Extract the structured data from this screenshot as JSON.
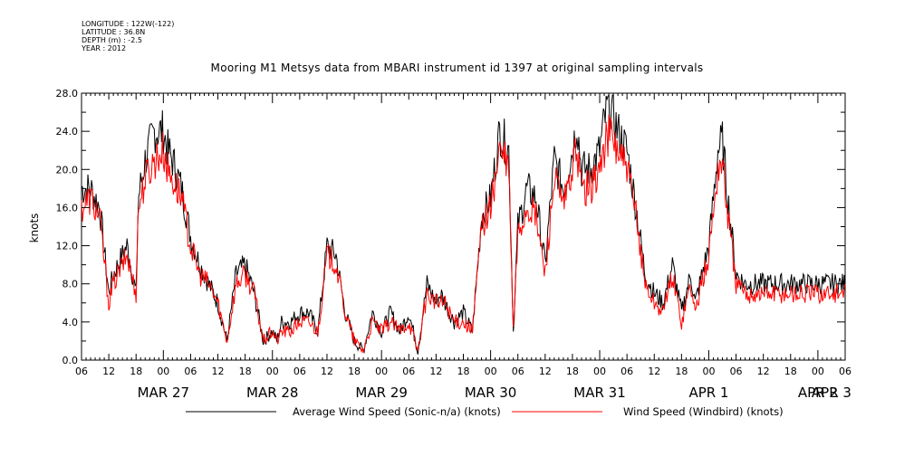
{
  "metadata_lines": [
    "LONGITUDE : 122W(-122)",
    "LATITUDE : 36.8N",
    "DEPTH (m) : -2.5",
    "YEAR : 2012"
  ],
  "chart_data": {
    "type": "line",
    "title": "Mooring M1 Metsys data from MBARI instrument id 1397 at original sampling intervals",
    "ylabel": "knots",
    "xlabel": "",
    "ylim": [
      0,
      28
    ],
    "xlim_hours": [
      0,
      168
    ],
    "y_ticks": [
      "0.0",
      "4.0",
      "8.0",
      "12.0",
      "16.0",
      "20.0",
      "24.0",
      "28.0"
    ],
    "hour_ticks": [
      "06",
      "12",
      "18",
      "00",
      "06",
      "12",
      "18",
      "00",
      "06",
      "12",
      "18",
      "00",
      "06",
      "12",
      "18",
      "00",
      "06",
      "12",
      "18",
      "00",
      "06",
      "12",
      "18",
      "00",
      "06",
      "12",
      "18",
      "00",
      "06"
    ],
    "day_labels": [
      "MAR 27",
      "MAR 28",
      "MAR 29",
      "MAR 30",
      "MAR 31",
      "APR  1",
      "APR  2",
      "APR  3"
    ],
    "grid": false,
    "legend_position": "bottom",
    "series": [
      {
        "name": "Average Wind Speed (Sonic-n/a) (knots)",
        "color": "#000000",
        "x": [
          0,
          2,
          4,
          6,
          7,
          8,
          10,
          12,
          12.5,
          14,
          16,
          18,
          19,
          20,
          22,
          24,
          26,
          28,
          30,
          32,
          34,
          36,
          38,
          40,
          42,
          43,
          44,
          46,
          48,
          50,
          52,
          54,
          56,
          58,
          60,
          62,
          64,
          66,
          68,
          70,
          72,
          74,
          76,
          78,
          79,
          80,
          82,
          84,
          86,
          88,
          90,
          92,
          94,
          95,
          96,
          98,
          100,
          102,
          104,
          106,
          108,
          109,
          110,
          112,
          114,
          115,
          116,
          118,
          120,
          122,
          124,
          126,
          128,
          130,
          132,
          134,
          135,
          136,
          138,
          140,
          141,
          142,
          144,
          146,
          148,
          150,
          152,
          154,
          156,
          158,
          160,
          162,
          164,
          166,
          167,
          168
        ],
        "values": [
          18,
          18,
          16,
          7,
          9,
          10,
          12,
          7,
          17,
          21,
          24,
          24,
          22,
          21,
          18,
          13,
          10,
          8,
          6,
          2,
          9,
          10,
          7,
          2,
          3,
          2,
          4,
          4,
          5,
          5,
          3,
          12,
          11,
          5,
          2,
          1,
          5,
          3,
          5,
          3,
          5,
          1,
          8,
          6,
          7,
          6,
          4,
          5,
          3,
          15,
          17,
          24,
          22,
          3,
          14,
          18,
          17,
          10,
          21,
          18,
          22,
          25,
          20,
          20,
          22,
          25,
          27,
          24,
          22,
          16,
          9,
          7,
          6,
          10,
          5,
          9,
          6,
          8,
          12,
          22,
          23,
          18,
          9,
          8,
          8,
          8,
          8,
          8,
          8,
          8,
          8,
          8,
          8,
          8,
          8,
          8
        ],
        "values_valid_to_hour": 140
      },
      {
        "name": "Wind Speed (Windbird) (knots)",
        "color": "#ff0000",
        "x": [
          0,
          2,
          4,
          6,
          7,
          8,
          10,
          12,
          12.5,
          14,
          16,
          18,
          19,
          20,
          22,
          24,
          26,
          28,
          30,
          32,
          34,
          36,
          38,
          40,
          42,
          43,
          44,
          46,
          48,
          50,
          52,
          54,
          56,
          58,
          60,
          62,
          64,
          66,
          68,
          70,
          72,
          74,
          76,
          78,
          79,
          80,
          82,
          84,
          86,
          88,
          90,
          92,
          94,
          95,
          96,
          98,
          100,
          102,
          104,
          106,
          108,
          109,
          110,
          112,
          114,
          115,
          116,
          118,
          120,
          122,
          124,
          126,
          128,
          130,
          132,
          134,
          135,
          136,
          138,
          140,
          141,
          142,
          144,
          146,
          148,
          150,
          152,
          154,
          156,
          158,
          160,
          162,
          164,
          166,
          167,
          168
        ],
        "values": [
          16,
          17,
          15,
          6,
          8,
          9,
          11,
          7,
          16,
          19,
          21,
          22,
          20,
          19,
          17,
          12,
          9,
          8,
          6,
          2,
          8,
          9,
          7,
          2,
          3,
          2,
          3,
          3,
          4,
          4,
          3,
          11,
          10,
          5,
          2,
          1,
          4,
          3,
          4,
          3,
          4,
          1,
          7,
          6,
          6,
          6,
          4,
          4,
          3,
          14,
          16,
          22,
          20,
          3,
          13,
          16,
          15,
          9,
          19,
          16,
          20,
          22,
          18,
          18,
          20,
          22,
          24,
          22,
          20,
          15,
          8,
          6,
          5,
          9,
          4,
          8,
          5,
          7,
          11,
          20,
          21,
          16,
          8,
          7,
          7,
          7,
          7,
          7,
          7,
          7,
          7,
          7,
          7,
          7,
          7,
          7
        ],
        "values_valid_to_hour": 140
      }
    ]
  }
}
